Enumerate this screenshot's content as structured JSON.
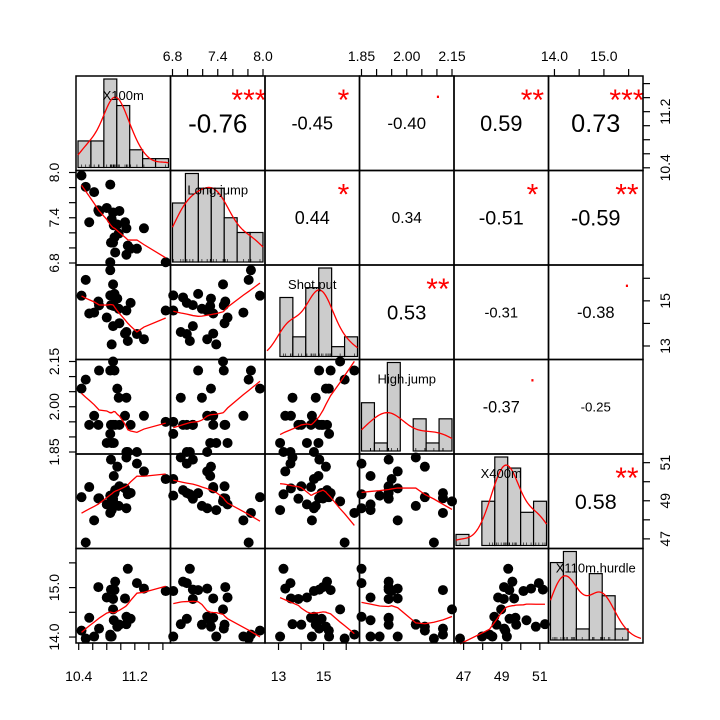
{
  "chart_data": {
    "type": "scatter-matrix",
    "variables": [
      "X100m",
      "Long.jump",
      "Shot.put",
      "High.jump",
      "X400m",
      "X110m.hurdle"
    ],
    "labels": [
      "X100m",
      "Long.jump",
      "Shot.put",
      "High.jump",
      "X400m",
      "X110m.hurdle"
    ],
    "limits": [
      [
        10.39,
        11.68
      ],
      [
        6.8,
        8.0
      ],
      [
        12.49,
        16.5
      ],
      [
        1.85,
        2.15
      ],
      [
        46.6,
        51.35
      ],
      [
        13.92,
        15.75
      ]
    ],
    "ticks": [
      {
        "values": [
          10.4,
          10.6,
          10.8,
          11.0,
          11.2,
          11.4,
          11.6
        ],
        "labels": [
          "10.4",
          "",
          "",
          "",
          "11.2",
          "",
          ""
        ]
      },
      {
        "values": [
          6.8,
          7.0,
          7.2,
          7.4,
          7.6,
          7.8,
          8.0
        ],
        "labels": [
          "6.8",
          "",
          "",
          "7.4",
          "",
          "",
          "8.0"
        ]
      },
      {
        "values": [
          13,
          14,
          15,
          16
        ],
        "labels": [
          "13",
          "",
          "15",
          ""
        ]
      },
      {
        "values": [
          1.85,
          1.9,
          1.95,
          2.0,
          2.05,
          2.1,
          2.15
        ],
        "labels": [
          "1.85",
          "",
          "",
          "2.00",
          "",
          "",
          "2.15"
        ]
      },
      {
        "values": [
          47,
          48,
          49,
          50,
          51
        ],
        "labels": [
          "47",
          "",
          "49",
          "",
          "51"
        ]
      },
      {
        "values": [
          14.0,
          14.5,
          15.0,
          15.5
        ],
        "labels": [
          "14.0",
          "",
          "15.0",
          ""
        ]
      }
    ],
    "correlations": [
      {
        "row": 0,
        "col": 1,
        "r": "-0.76",
        "stars": "***"
      },
      {
        "row": 0,
        "col": 2,
        "r": "-0.45",
        "stars": "*"
      },
      {
        "row": 0,
        "col": 3,
        "r": "-0.40",
        "stars": "."
      },
      {
        "row": 0,
        "col": 4,
        "r": "0.59",
        "stars": "**"
      },
      {
        "row": 0,
        "col": 5,
        "r": "0.73",
        "stars": "***"
      },
      {
        "row": 1,
        "col": 2,
        "r": "0.44",
        "stars": "*"
      },
      {
        "row": 1,
        "col": 3,
        "r": "0.34",
        "stars": ""
      },
      {
        "row": 1,
        "col": 4,
        "r": "-0.51",
        "stars": "*"
      },
      {
        "row": 1,
        "col": 5,
        "r": "-0.59",
        "stars": "**"
      },
      {
        "row": 2,
        "col": 3,
        "r": "0.53",
        "stars": "**"
      },
      {
        "row": 2,
        "col": 4,
        "r": "-0.31",
        "stars": ""
      },
      {
        "row": 2,
        "col": 5,
        "r": "-0.38",
        "stars": "."
      },
      {
        "row": 3,
        "col": 4,
        "r": "-0.37",
        "stars": "."
      },
      {
        "row": 3,
        "col": 5,
        "r": "-0.25",
        "stars": ""
      },
      {
        "row": 4,
        "col": 5,
        "r": "0.58",
        "stars": "**"
      }
    ],
    "observations": [
      [
        10.85,
        7.84,
        16.36,
        2.12,
        48.36,
        14.05
      ],
      [
        10.44,
        7.96,
        15.23,
        2.06,
        49.19,
        14.13
      ],
      [
        10.5,
        7.81,
        15.93,
        2.09,
        46.81,
        13.97
      ],
      [
        10.89,
        7.47,
        15.73,
        2.15,
        48.97,
        14.56
      ],
      [
        10.62,
        7.74,
        14.48,
        1.97,
        47.97,
        14.01
      ],
      [
        10.91,
        7.14,
        15.31,
        2.12,
        49.4,
        14.95
      ],
      [
        10.97,
        7.19,
        14.65,
        2.03,
        48.73,
        14.25
      ],
      [
        10.8,
        7.53,
        14.26,
        1.88,
        48.81,
        14.8
      ],
      [
        10.69,
        7.48,
        14.8,
        2.12,
        49.13,
        14.17
      ],
      [
        10.98,
        7.49,
        14.01,
        1.94,
        49.76,
        14.25
      ],
      [
        10.95,
        7.31,
        15.1,
        2.06,
        50.79,
        14.21
      ],
      [
        10.9,
        7.3,
        14.77,
        1.88,
        50.3,
        14.34
      ],
      [
        11.14,
        6.99,
        14.91,
        1.94,
        49.41,
        14.37
      ],
      [
        10.85,
        6.81,
        15.24,
        1.91,
        49.27,
        14.01
      ],
      [
        10.55,
        7.34,
        14.44,
        1.94,
        49.72,
        14.39
      ],
      [
        10.68,
        7.5,
        14.97,
        1.94,
        49.12,
        15.01
      ],
      [
        10.89,
        7.07,
        13.88,
        1.94,
        49.11,
        14.77
      ],
      [
        11.06,
        7.34,
        13.55,
        1.97,
        49.65,
        14.78
      ],
      [
        10.87,
        7.38,
        13.07,
        1.88,
        48.51,
        14.01
      ],
      [
        10.92,
        6.94,
        15.15,
        1.94,
        49.56,
        15.12
      ],
      [
        11.08,
        7.26,
        14.57,
        1.85,
        48.61,
        14.41
      ],
      [
        11.08,
        6.91,
        13.62,
        2.03,
        51.27,
        14.26
      ],
      [
        11.1,
        7.03,
        13.22,
        1.85,
        49.34,
        15.38
      ],
      [
        11.33,
        7.26,
        13.3,
        1.97,
        50.54,
        14.98
      ],
      [
        10.86,
        7.07,
        14.81,
        1.94,
        51.16,
        14.96
      ],
      [
        11.23,
        6.99,
        13.53,
        1.85,
        50.95,
        15.09
      ],
      [
        11.64,
        6.81,
        14.57,
        1.95,
        50.14,
        14.93
      ]
    ],
    "colors": {
      "points": "#000000",
      "smooth": "#ff0000",
      "stars": "#ff0000",
      "histogram": "#cccccc",
      "density": "#ff0000"
    }
  }
}
